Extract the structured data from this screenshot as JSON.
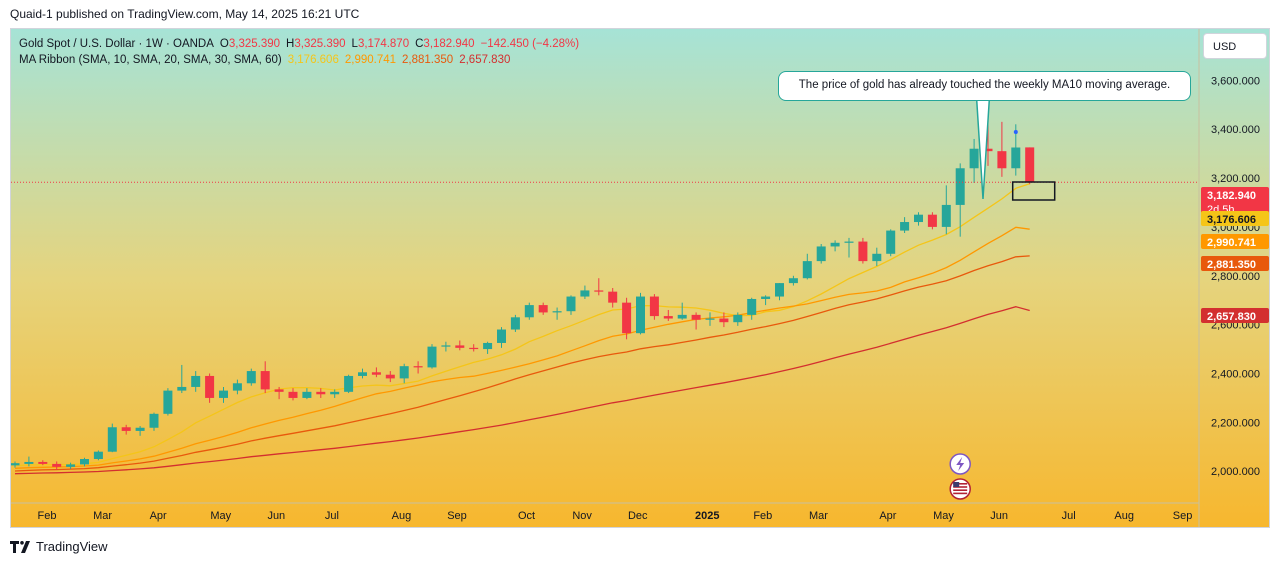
{
  "attribution": "Quaid-1 published on TradingView.com, May 14, 2025 16:21 UTC",
  "legend": {
    "symbol": "Gold Spot / U.S. Dollar · 1W · OANDA",
    "o_label": "O",
    "o_value": "3,325.390",
    "h_label": "H",
    "h_value": "3,325.390",
    "l_label": "L",
    "l_value": "3,174.870",
    "c_label": "C",
    "c_value": "3,182.940",
    "change": "−142.450 (−4.28%)",
    "ribbon_label": "MA Ribbon (SMA, 10, SMA, 20, SMA, 30, SMA, 60)",
    "ribbon_values": [
      "3,176.606",
      "2,990.741",
      "2,881.350",
      "2,657.830"
    ],
    "ribbon_colors": [
      "#f5c518",
      "#ff9800",
      "#e8590c",
      "#d32f2f"
    ]
  },
  "currency_button": "USD",
  "annotation": "The price of gold has already touched the weekly MA10 moving average.",
  "brand": "TradingView",
  "colors": {
    "up": "#26a69a",
    "down": "#f23645"
  },
  "chart_data": {
    "type": "candlestick",
    "title": "Gold Spot / U.S. Dollar · 1W · OANDA",
    "y_axis": {
      "ticks": [
        "2,000.000",
        "2,200.000",
        "2,400.000",
        "2,600.000",
        "2,800.000",
        "3,000.000",
        "3,200.000",
        "3,400.000",
        "3,600.000"
      ],
      "tick_values": [
        2000,
        2200,
        2400,
        2600,
        2800,
        3000,
        3200,
        3400,
        3600
      ],
      "range": [
        1870,
        3810
      ],
      "position": "right"
    },
    "x_axis": {
      "labels": [
        "Feb",
        "Mar",
        "Apr",
        "May",
        "Jun",
        "Jul",
        "Aug",
        "Sep",
        "Oct",
        "Nov",
        "Dec",
        "2025",
        "Feb",
        "Mar",
        "Apr",
        "May",
        "Jun",
        "Jul",
        "Aug",
        "Sep"
      ],
      "label_week_index": [
        2.3,
        6.3,
        10.3,
        14.8,
        18.8,
        22.8,
        27.8,
        31.8,
        36.8,
        40.8,
        44.8,
        49.8,
        53.8,
        57.8,
        62.8,
        66.8,
        70.8,
        75.8,
        79.8,
        84
      ]
    },
    "candles": [
      {
        "o": 2024,
        "h": 2040,
        "l": 2015,
        "c": 2033
      },
      {
        "o": 2030,
        "h": 2060,
        "l": 2020,
        "c": 2038
      },
      {
        "o": 2038,
        "h": 2045,
        "l": 2025,
        "c": 2030
      },
      {
        "o": 2030,
        "h": 2040,
        "l": 2005,
        "c": 2018
      },
      {
        "o": 2018,
        "h": 2035,
        "l": 2010,
        "c": 2028
      },
      {
        "o": 2028,
        "h": 2055,
        "l": 2020,
        "c": 2050
      },
      {
        "o": 2050,
        "h": 2085,
        "l": 2045,
        "c": 2080
      },
      {
        "o": 2080,
        "h": 2195,
        "l": 2078,
        "c": 2180
      },
      {
        "o": 2180,
        "h": 2190,
        "l": 2150,
        "c": 2165
      },
      {
        "o": 2165,
        "h": 2185,
        "l": 2145,
        "c": 2178
      },
      {
        "o": 2178,
        "h": 2240,
        "l": 2165,
        "c": 2235
      },
      {
        "o": 2235,
        "h": 2340,
        "l": 2228,
        "c": 2330
      },
      {
        "o": 2330,
        "h": 2435,
        "l": 2320,
        "c": 2345
      },
      {
        "o": 2345,
        "h": 2410,
        "l": 2325,
        "c": 2390
      },
      {
        "o": 2390,
        "h": 2400,
        "l": 2280,
        "c": 2300
      },
      {
        "o": 2300,
        "h": 2345,
        "l": 2280,
        "c": 2330
      },
      {
        "o": 2330,
        "h": 2375,
        "l": 2315,
        "c": 2360
      },
      {
        "o": 2360,
        "h": 2420,
        "l": 2350,
        "c": 2410
      },
      {
        "o": 2410,
        "h": 2450,
        "l": 2320,
        "c": 2335
      },
      {
        "o": 2335,
        "h": 2345,
        "l": 2295,
        "c": 2325
      },
      {
        "o": 2325,
        "h": 2340,
        "l": 2290,
        "c": 2300
      },
      {
        "o": 2300,
        "h": 2340,
        "l": 2295,
        "c": 2325
      },
      {
        "o": 2325,
        "h": 2340,
        "l": 2300,
        "c": 2315
      },
      {
        "o": 2315,
        "h": 2335,
        "l": 2300,
        "c": 2325
      },
      {
        "o": 2325,
        "h": 2395,
        "l": 2320,
        "c": 2390
      },
      {
        "o": 2390,
        "h": 2420,
        "l": 2380,
        "c": 2405
      },
      {
        "o": 2405,
        "h": 2425,
        "l": 2385,
        "c": 2395
      },
      {
        "o": 2395,
        "h": 2410,
        "l": 2365,
        "c": 2380
      },
      {
        "o": 2380,
        "h": 2440,
        "l": 2360,
        "c": 2430
      },
      {
        "o": 2430,
        "h": 2450,
        "l": 2400,
        "c": 2425
      },
      {
        "o": 2425,
        "h": 2520,
        "l": 2420,
        "c": 2510
      },
      {
        "o": 2510,
        "h": 2530,
        "l": 2490,
        "c": 2515
      },
      {
        "o": 2515,
        "h": 2535,
        "l": 2495,
        "c": 2505
      },
      {
        "o": 2505,
        "h": 2520,
        "l": 2490,
        "c": 2500
      },
      {
        "o": 2500,
        "h": 2530,
        "l": 2480,
        "c": 2525
      },
      {
        "o": 2525,
        "h": 2590,
        "l": 2505,
        "c": 2580
      },
      {
        "o": 2580,
        "h": 2640,
        "l": 2570,
        "c": 2630
      },
      {
        "o": 2630,
        "h": 2690,
        "l": 2620,
        "c": 2680
      },
      {
        "o": 2680,
        "h": 2690,
        "l": 2640,
        "c": 2650
      },
      {
        "o": 2650,
        "h": 2670,
        "l": 2620,
        "c": 2655
      },
      {
        "o": 2655,
        "h": 2720,
        "l": 2640,
        "c": 2715
      },
      {
        "o": 2715,
        "h": 2760,
        "l": 2705,
        "c": 2740
      },
      {
        "o": 2740,
        "h": 2790,
        "l": 2720,
        "c": 2735
      },
      {
        "o": 2735,
        "h": 2750,
        "l": 2670,
        "c": 2690
      },
      {
        "o": 2690,
        "h": 2710,
        "l": 2540,
        "c": 2565
      },
      {
        "o": 2565,
        "h": 2730,
        "l": 2560,
        "c": 2715
      },
      {
        "o": 2715,
        "h": 2725,
        "l": 2620,
        "c": 2635
      },
      {
        "o": 2635,
        "h": 2660,
        "l": 2615,
        "c": 2625
      },
      {
        "o": 2625,
        "h": 2690,
        "l": 2620,
        "c": 2640
      },
      {
        "o": 2640,
        "h": 2650,
        "l": 2580,
        "c": 2620
      },
      {
        "o": 2620,
        "h": 2650,
        "l": 2595,
        "c": 2625
      },
      {
        "o": 2625,
        "h": 2650,
        "l": 2590,
        "c": 2610
      },
      {
        "o": 2610,
        "h": 2650,
        "l": 2595,
        "c": 2640
      },
      {
        "o": 2640,
        "h": 2710,
        "l": 2620,
        "c": 2705
      },
      {
        "o": 2705,
        "h": 2720,
        "l": 2680,
        "c": 2715
      },
      {
        "o": 2715,
        "h": 2770,
        "l": 2700,
        "c": 2770
      },
      {
        "o": 2770,
        "h": 2800,
        "l": 2760,
        "c": 2790
      },
      {
        "o": 2790,
        "h": 2890,
        "l": 2785,
        "c": 2860
      },
      {
        "o": 2860,
        "h": 2930,
        "l": 2850,
        "c": 2920
      },
      {
        "o": 2920,
        "h": 2945,
        "l": 2900,
        "c": 2935
      },
      {
        "o": 2935,
        "h": 2955,
        "l": 2875,
        "c": 2940
      },
      {
        "o": 2940,
        "h": 2955,
        "l": 2850,
        "c": 2860
      },
      {
        "o": 2860,
        "h": 2915,
        "l": 2840,
        "c": 2890
      },
      {
        "o": 2890,
        "h": 2990,
        "l": 2880,
        "c": 2985
      },
      {
        "o": 2985,
        "h": 3040,
        "l": 2975,
        "c": 3020
      },
      {
        "o": 3020,
        "h": 3060,
        "l": 3005,
        "c": 3050
      },
      {
        "o": 3050,
        "h": 3060,
        "l": 2990,
        "c": 3000
      },
      {
        "o": 3000,
        "h": 3170,
        "l": 2970,
        "c": 3090
      },
      {
        "o": 3090,
        "h": 3260,
        "l": 2960,
        "c": 3240
      },
      {
        "o": 3240,
        "h": 3360,
        "l": 3180,
        "c": 3320
      },
      {
        "o": 3320,
        "h": 3500,
        "l": 3250,
        "c": 3310
      },
      {
        "o": 3310,
        "h": 3430,
        "l": 3205,
        "c": 3240
      },
      {
        "o": 3240,
        "h": 3420,
        "l": 3210,
        "c": 3325
      },
      {
        "o": 3325.39,
        "h": 3325.39,
        "l": 3174.87,
        "c": 3182.94
      }
    ],
    "series": [
      {
        "name": "SMA 10",
        "color": "#f5c518",
        "last": 3176.606
      },
      {
        "name": "SMA 20",
        "color": "#ff9800",
        "last": 2990.741
      },
      {
        "name": "SMA 30",
        "color": "#e8590c",
        "last": 2881.35
      },
      {
        "name": "SMA 60",
        "color": "#d32f2f",
        "last": 2657.83
      }
    ],
    "price_labels": [
      {
        "value": 3182.94,
        "text": "3,182.940",
        "sub": "2d 5h",
        "color": "#f23645"
      },
      {
        "value": 3176.606,
        "text": "3,176.606",
        "color": "#f5c518"
      },
      {
        "value": 2990.741,
        "text": "2,990.741",
        "color": "#ff9800"
      },
      {
        "value": 2881.35,
        "text": "2,881.350",
        "color": "#e8590c"
      },
      {
        "value": 2657.83,
        "text": "2,657.830",
        "color": "#d32f2f"
      }
    ],
    "grid": false,
    "legend_position": "top-left"
  }
}
